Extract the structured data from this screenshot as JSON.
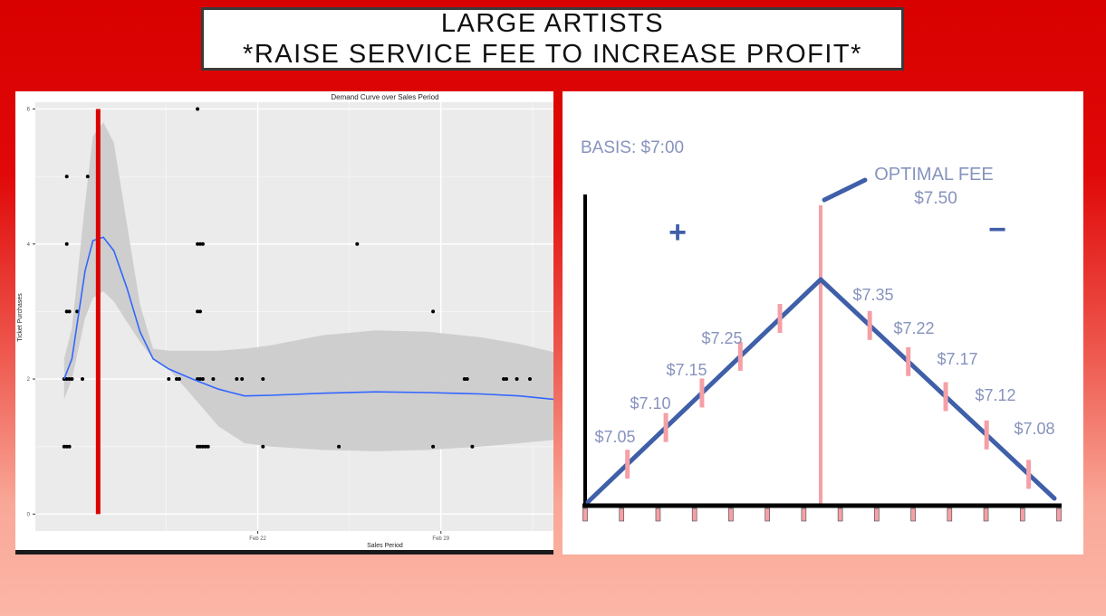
{
  "slide": {
    "title_line1": "LARGE ARTISTS",
    "title_line2": "*RAISE SERVICE FEE TO INCREASE PROFIT*"
  },
  "colors": {
    "background_top": "#d90000",
    "background_bottom": "#fcb6a6",
    "smooth_line": "#3366ff",
    "confidence_band": "#cccccc",
    "marker_line": "#dd0000",
    "fee_line": "#3f5fa8",
    "fee_ticks": "#f4a0a6",
    "fee_text": "#8793bd"
  },
  "chart_data": [
    {
      "type": "scatter",
      "title": "Demand Curve over Sales Period",
      "xlabel": "Sales Period",
      "ylabel": "Ticket Purchases",
      "xlim": [
        12.5,
        3.3
      ],
      "ylim": [
        -0.25,
        6.1
      ],
      "grid": true,
      "x_ticks": [
        {
          "value": 22,
          "label": "Feb 22"
        },
        {
          "value": 29,
          "label": "Feb 29"
        }
      ],
      "y_ticks": [
        0,
        2,
        4,
        6
      ],
      "points": [
        [
          14.6,
          2
        ],
        [
          14.7,
          2
        ],
        [
          14.8,
          2
        ],
        [
          14.9,
          2
        ],
        [
          15.3,
          2
        ],
        [
          18.6,
          2
        ],
        [
          18.9,
          2
        ],
        [
          19.0,
          2
        ],
        [
          19.7,
          2
        ],
        [
          19.8,
          2
        ],
        [
          19.9,
          2
        ],
        [
          20.3,
          2
        ],
        [
          21.2,
          2
        ],
        [
          21.4,
          2
        ],
        [
          22.2,
          2
        ],
        [
          29.9,
          2
        ],
        [
          30.0,
          2
        ],
        [
          31.4,
          2
        ],
        [
          31.5,
          2
        ],
        [
          31.9,
          2
        ],
        [
          32.4,
          2
        ],
        [
          14.6,
          1
        ],
        [
          14.7,
          1
        ],
        [
          14.8,
          1
        ],
        [
          19.7,
          1
        ],
        [
          19.8,
          1
        ],
        [
          19.9,
          1
        ],
        [
          20.0,
          1
        ],
        [
          20.1,
          1
        ],
        [
          22.2,
          1
        ],
        [
          25.1,
          1
        ],
        [
          28.7,
          1
        ],
        [
          30.2,
          1
        ],
        [
          14.7,
          3
        ],
        [
          14.8,
          3
        ],
        [
          15.1,
          3
        ],
        [
          19.7,
          3
        ],
        [
          19.8,
          3
        ],
        [
          28.7,
          3
        ],
        [
          14.7,
          4
        ],
        [
          19.7,
          4
        ],
        [
          19.8,
          4
        ],
        [
          19.9,
          4
        ],
        [
          25.8,
          4
        ],
        [
          14.7,
          5
        ],
        [
          15.5,
          5
        ],
        [
          19.7,
          6
        ]
      ],
      "smooth_fit": {
        "x": [
          14.6,
          14.9,
          15.4,
          15.7,
          16.1,
          16.5,
          17.0,
          17.5,
          18.0,
          18.6,
          19.5,
          20.5,
          21.5,
          22.5,
          24.5,
          26.5,
          28.5,
          30.5,
          32.0,
          33.3
        ],
        "y": [
          2.0,
          2.3,
          3.6,
          4.05,
          4.1,
          3.9,
          3.35,
          2.7,
          2.3,
          2.15,
          2.0,
          1.85,
          1.75,
          1.76,
          1.79,
          1.81,
          1.8,
          1.78,
          1.75,
          1.7
        ],
        "lower": [
          1.7,
          2.0,
          2.9,
          3.2,
          3.3,
          3.15,
          2.85,
          2.55,
          2.3,
          2.15,
          1.75,
          1.3,
          1.05,
          1.0,
          0.95,
          0.93,
          0.95,
          1.0,
          1.05,
          1.1
        ],
        "upper": [
          2.3,
          2.75,
          4.6,
          5.6,
          5.8,
          5.5,
          4.3,
          3.1,
          2.45,
          2.42,
          2.42,
          2.42,
          2.45,
          2.5,
          2.65,
          2.72,
          2.7,
          2.62,
          2.52,
          2.4
        ]
      },
      "vertical_marker_x": 15.9
    },
    {
      "type": "line",
      "basis_label": "BASIS: $7:00",
      "optimal_label": "OPTIMAL FEE",
      "optimal_value": "$7.50",
      "plus_sign": "+",
      "minus_sign": "−",
      "left_labels": [
        "$7.05",
        "$7.10",
        "$7.15",
        "$7.25"
      ],
      "right_labels": [
        "$7.35",
        "$7.22",
        "$7.17",
        "$7.12",
        "$7.08"
      ],
      "bottom_tick_count": 14
    }
  ]
}
